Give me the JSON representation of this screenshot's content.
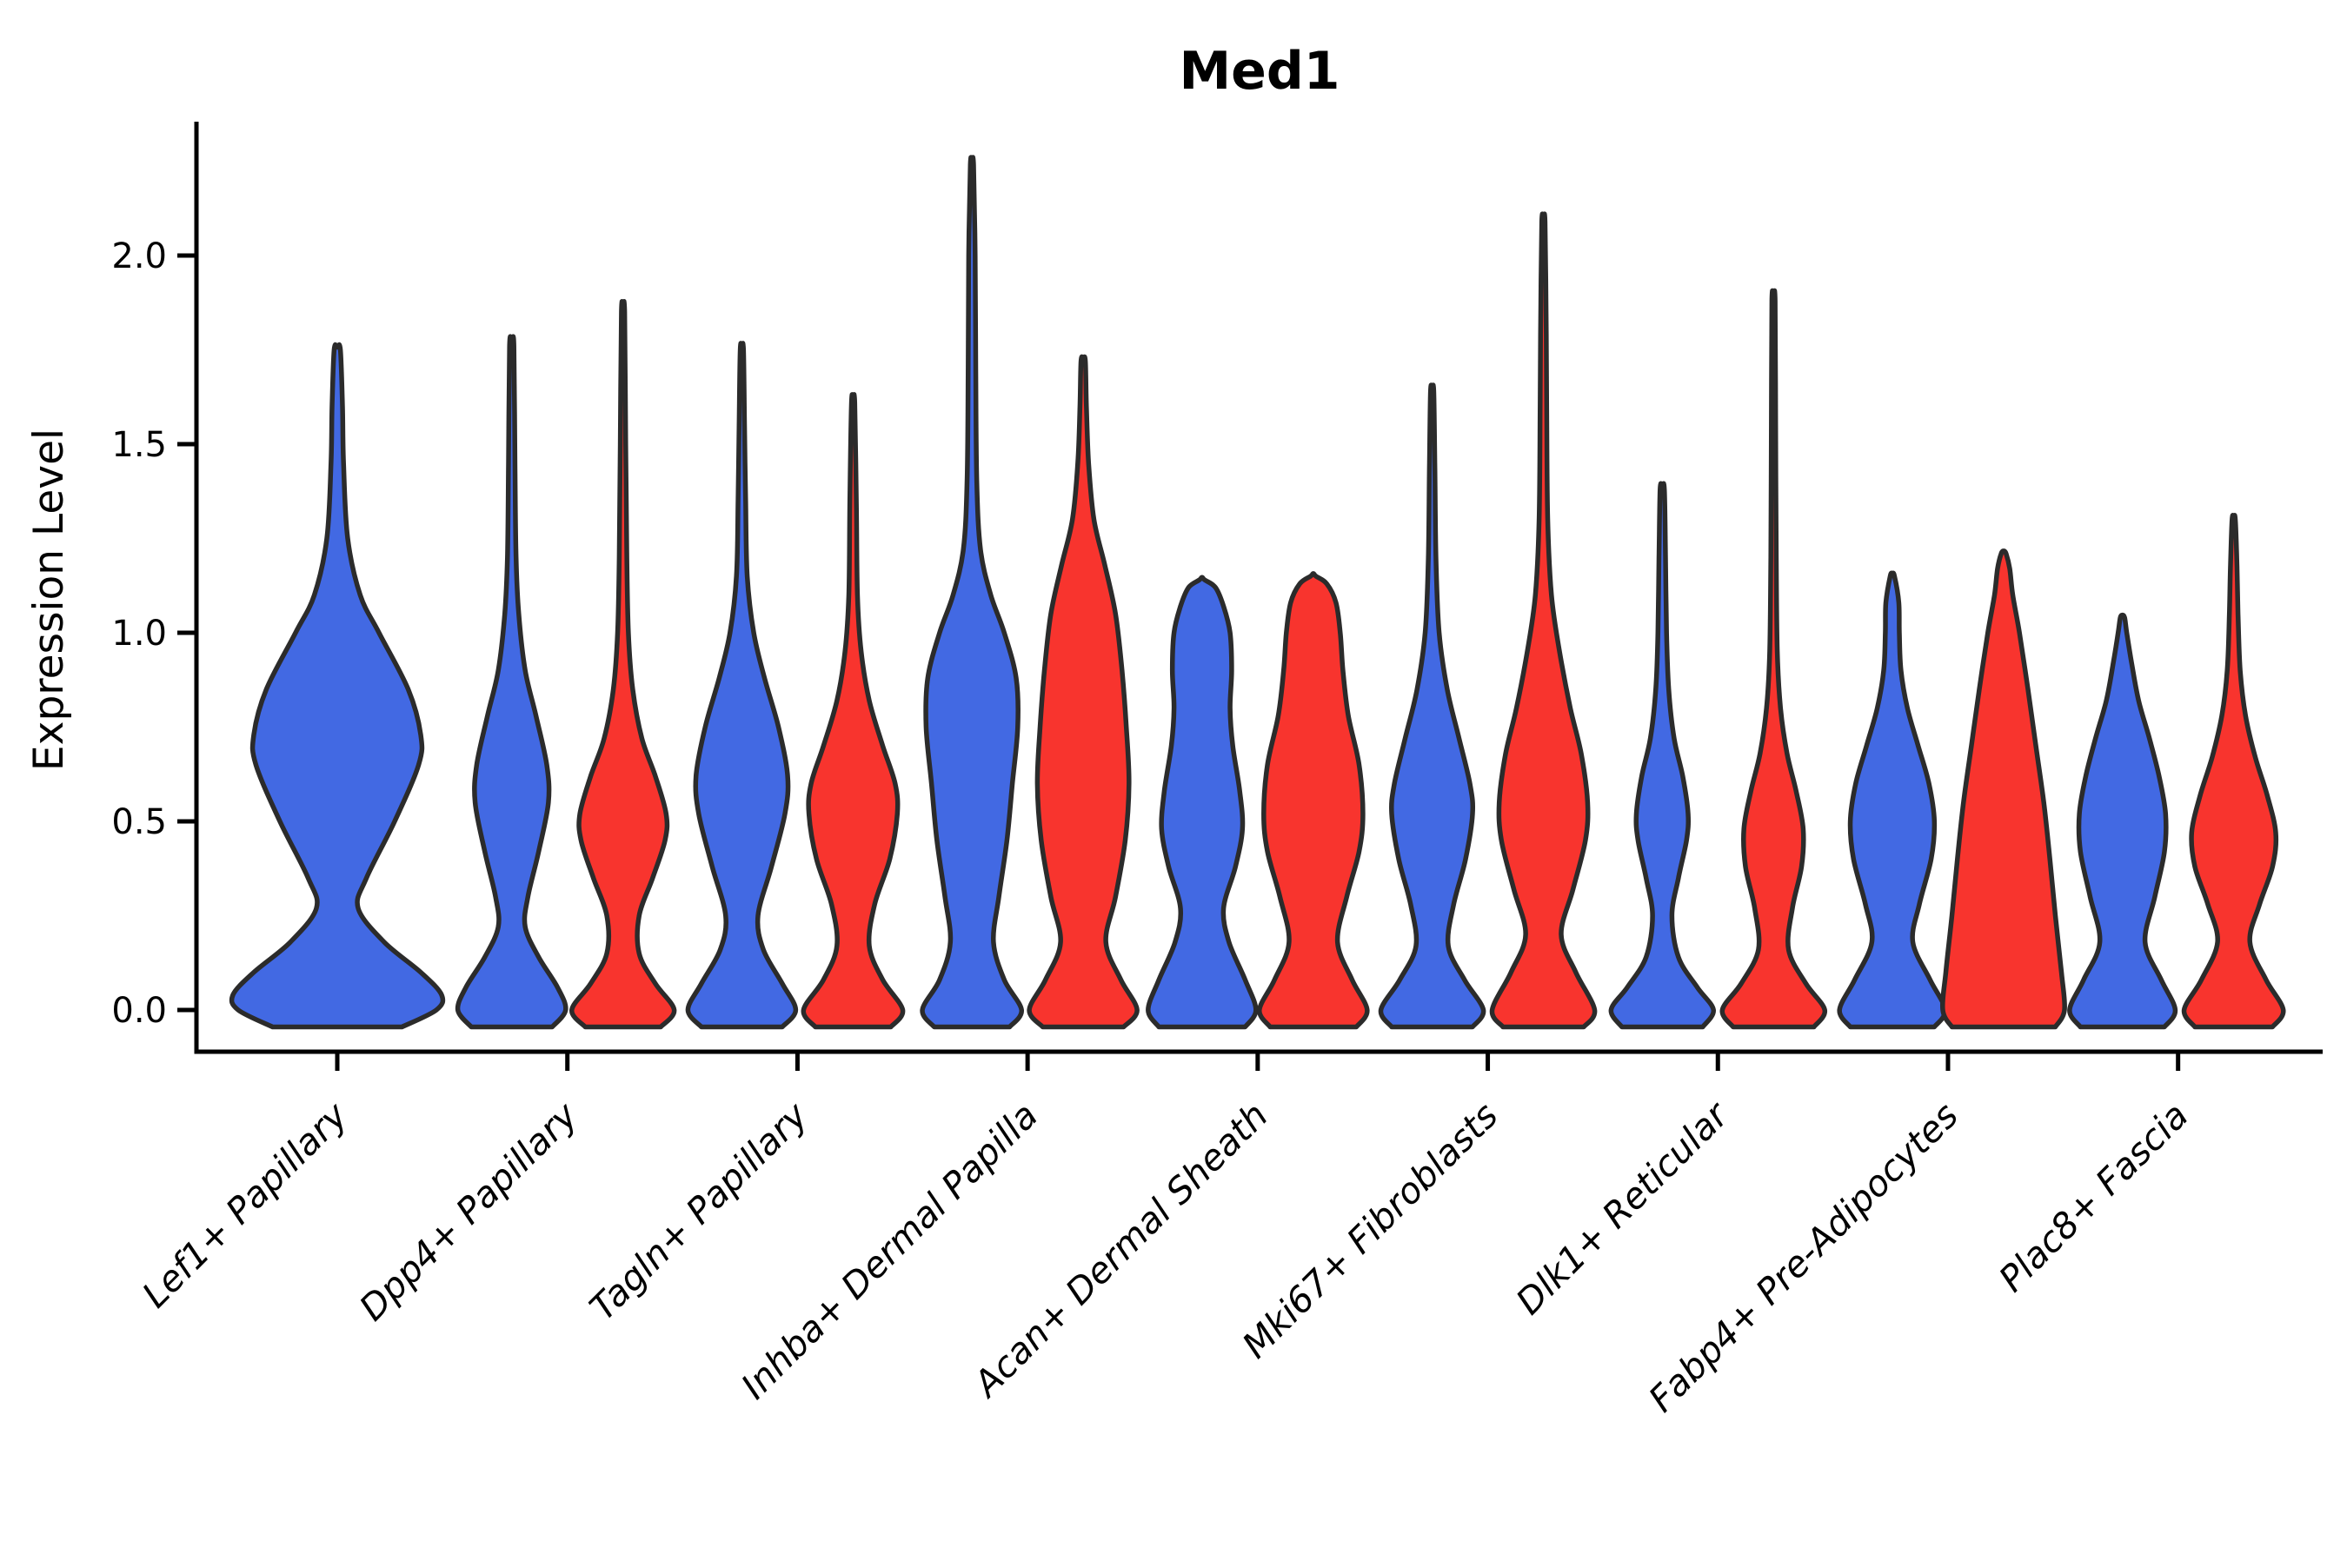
{
  "title": "Med1",
  "chart_data": {
    "type": "violin",
    "title": "Med1",
    "ylabel": "Expression Level",
    "xlabel": "",
    "grid": false,
    "legend": "none",
    "ylim": [
      -0.11,
      2.35
    ],
    "yticks": [
      0.0,
      0.5,
      1.0,
      1.5,
      2.0
    ],
    "ytick_labels": [
      "0.0",
      "0.5",
      "1.0",
      "1.5",
      "2.0"
    ],
    "categories": [
      "Lef1+ Papillary",
      "Dpp4+ Papillary",
      "Tagln+ Papillary",
      "Inhba+ Dermal Papilla",
      "Acan+ Dermal Sheath",
      "Mki67+ Fibroblasts",
      "Dlk1+ Reticular",
      "Fabp4+ Pre-Adipocytes",
      "Plac8+ Fascia"
    ],
    "split_colors": {
      "blue": "#4269E3",
      "red": "#F8342E"
    },
    "outline_color": "#2B2B2B",
    "axis_color": "#000000",
    "series": [
      {
        "name": "blue",
        "color": "#4269E3",
        "max_expression": [
          1.75,
          1.76,
          1.75,
          2.24,
          1.14,
          1.64,
          1.38,
          1.15,
          1.04
        ]
      },
      {
        "name": "red",
        "color": "#F8342E",
        "max_expression": [
          null,
          1.85,
          1.61,
          1.72,
          1.15,
          2.09,
          1.88,
          1.21,
          1.3
        ]
      }
    ],
    "violins": [
      {
        "category_index": 0,
        "split": "blue",
        "tip": 1.75,
        "center_offset": 0,
        "half_width": 120,
        "profile": [
          [
            -0.045,
            0.62
          ],
          [
            0.0,
            0.95
          ],
          [
            0.04,
            1.0
          ],
          [
            0.1,
            0.8
          ],
          [
            0.18,
            0.45
          ],
          [
            0.27,
            0.2
          ],
          [
            0.35,
            0.28
          ],
          [
            0.5,
            0.55
          ],
          [
            0.65,
            0.78
          ],
          [
            0.73,
            0.8
          ],
          [
            0.85,
            0.68
          ],
          [
            1.0,
            0.4
          ],
          [
            1.1,
            0.22
          ],
          [
            1.25,
            0.1
          ],
          [
            1.45,
            0.06
          ],
          [
            1.6,
            0.05
          ],
          [
            1.75,
            0.03
          ]
        ]
      },
      {
        "category_index": 1,
        "split": "blue",
        "tip": 1.76,
        "center_offset": -64,
        "half_width": 62,
        "profile": [
          [
            -0.045,
            0.75
          ],
          [
            0.0,
            1.0
          ],
          [
            0.06,
            0.85
          ],
          [
            0.14,
            0.5
          ],
          [
            0.22,
            0.25
          ],
          [
            0.3,
            0.3
          ],
          [
            0.42,
            0.5
          ],
          [
            0.55,
            0.68
          ],
          [
            0.65,
            0.65
          ],
          [
            0.78,
            0.45
          ],
          [
            0.9,
            0.25
          ],
          [
            1.05,
            0.13
          ],
          [
            1.2,
            0.08
          ],
          [
            1.45,
            0.06
          ],
          [
            1.76,
            0.04
          ]
        ]
      },
      {
        "category_index": 1,
        "split": "red",
        "tip": 1.85,
        "center_offset": 64,
        "half_width": 62,
        "profile": [
          [
            -0.045,
            0.7
          ],
          [
            0.0,
            0.95
          ],
          [
            0.07,
            0.6
          ],
          [
            0.15,
            0.3
          ],
          [
            0.25,
            0.3
          ],
          [
            0.35,
            0.55
          ],
          [
            0.45,
            0.78
          ],
          [
            0.52,
            0.8
          ],
          [
            0.62,
            0.6
          ],
          [
            0.72,
            0.35
          ],
          [
            0.85,
            0.18
          ],
          [
            1.0,
            0.1
          ],
          [
            1.2,
            0.07
          ],
          [
            1.5,
            0.05
          ],
          [
            1.85,
            0.03
          ]
        ]
      },
      {
        "category_index": 2,
        "split": "blue",
        "tip": 1.75,
        "center_offset": -64,
        "half_width": 62,
        "profile": [
          [
            -0.045,
            0.75
          ],
          [
            0.0,
            1.0
          ],
          [
            0.07,
            0.75
          ],
          [
            0.16,
            0.4
          ],
          [
            0.25,
            0.3
          ],
          [
            0.38,
            0.55
          ],
          [
            0.52,
            0.8
          ],
          [
            0.62,
            0.85
          ],
          [
            0.75,
            0.68
          ],
          [
            0.88,
            0.42
          ],
          [
            1.0,
            0.22
          ],
          [
            1.15,
            0.1
          ],
          [
            1.35,
            0.07
          ],
          [
            1.55,
            0.05
          ],
          [
            1.75,
            0.03
          ]
        ]
      },
      {
        "category_index": 2,
        "split": "red",
        "tip": 1.61,
        "center_offset": 64,
        "half_width": 62,
        "profile": [
          [
            -0.045,
            0.7
          ],
          [
            0.0,
            0.92
          ],
          [
            0.08,
            0.55
          ],
          [
            0.17,
            0.3
          ],
          [
            0.28,
            0.4
          ],
          [
            0.4,
            0.68
          ],
          [
            0.52,
            0.82
          ],
          [
            0.6,
            0.78
          ],
          [
            0.7,
            0.55
          ],
          [
            0.82,
            0.3
          ],
          [
            0.95,
            0.15
          ],
          [
            1.1,
            0.08
          ],
          [
            1.35,
            0.06
          ],
          [
            1.61,
            0.03
          ]
        ]
      },
      {
        "category_index": 3,
        "split": "blue",
        "tip": 2.24,
        "center_offset": -64,
        "half_width": 62,
        "profile": [
          [
            -0.045,
            0.7
          ],
          [
            0.0,
            0.92
          ],
          [
            0.08,
            0.6
          ],
          [
            0.18,
            0.4
          ],
          [
            0.3,
            0.5
          ],
          [
            0.45,
            0.65
          ],
          [
            0.6,
            0.75
          ],
          [
            0.75,
            0.85
          ],
          [
            0.88,
            0.82
          ],
          [
            1.0,
            0.6
          ],
          [
            1.1,
            0.35
          ],
          [
            1.22,
            0.16
          ],
          [
            1.4,
            0.09
          ],
          [
            1.7,
            0.07
          ],
          [
            2.0,
            0.06
          ],
          [
            2.24,
            0.03
          ]
        ]
      },
      {
        "category_index": 3,
        "split": "red",
        "tip": 1.72,
        "center_offset": 64,
        "half_width": 62,
        "profile": [
          [
            -0.045,
            0.75
          ],
          [
            0.0,
            1.0
          ],
          [
            0.08,
            0.7
          ],
          [
            0.18,
            0.42
          ],
          [
            0.3,
            0.6
          ],
          [
            0.45,
            0.78
          ],
          [
            0.6,
            0.85
          ],
          [
            0.75,
            0.8
          ],
          [
            0.9,
            0.72
          ],
          [
            1.05,
            0.6
          ],
          [
            1.18,
            0.4
          ],
          [
            1.3,
            0.2
          ],
          [
            1.45,
            0.1
          ],
          [
            1.6,
            0.06
          ],
          [
            1.72,
            0.04
          ]
        ]
      },
      {
        "category_index": 4,
        "split": "blue",
        "tip": 1.14,
        "center_offset": -64,
        "half_width": 62,
        "profile": [
          [
            -0.045,
            0.8
          ],
          [
            0.0,
            1.0
          ],
          [
            0.08,
            0.8
          ],
          [
            0.18,
            0.5
          ],
          [
            0.27,
            0.4
          ],
          [
            0.38,
            0.62
          ],
          [
            0.48,
            0.75
          ],
          [
            0.58,
            0.7
          ],
          [
            0.7,
            0.57
          ],
          [
            0.8,
            0.52
          ],
          [
            0.9,
            0.55
          ],
          [
            1.0,
            0.52
          ],
          [
            1.07,
            0.4
          ],
          [
            1.12,
            0.25
          ],
          [
            1.14,
            0.05
          ]
        ]
      },
      {
        "category_index": 4,
        "split": "red",
        "tip": 1.15,
        "center_offset": 64,
        "half_width": 62,
        "profile": [
          [
            -0.045,
            0.8
          ],
          [
            0.0,
            1.0
          ],
          [
            0.08,
            0.72
          ],
          [
            0.18,
            0.45
          ],
          [
            0.3,
            0.62
          ],
          [
            0.42,
            0.85
          ],
          [
            0.52,
            0.92
          ],
          [
            0.65,
            0.85
          ],
          [
            0.78,
            0.65
          ],
          [
            0.9,
            0.55
          ],
          [
            1.0,
            0.5
          ],
          [
            1.08,
            0.42
          ],
          [
            1.13,
            0.25
          ],
          [
            1.15,
            0.05
          ]
        ]
      },
      {
        "category_index": 5,
        "split": "blue",
        "tip": 1.64,
        "center_offset": -64,
        "half_width": 62,
        "profile": [
          [
            -0.045,
            0.75
          ],
          [
            0.0,
            0.95
          ],
          [
            0.08,
            0.6
          ],
          [
            0.17,
            0.3
          ],
          [
            0.28,
            0.4
          ],
          [
            0.4,
            0.62
          ],
          [
            0.52,
            0.75
          ],
          [
            0.6,
            0.7
          ],
          [
            0.72,
            0.5
          ],
          [
            0.85,
            0.28
          ],
          [
            1.0,
            0.13
          ],
          [
            1.2,
            0.07
          ],
          [
            1.45,
            0.05
          ],
          [
            1.64,
            0.03
          ]
        ]
      },
      {
        "category_index": 5,
        "split": "red",
        "tip": 2.09,
        "center_offset": 64,
        "half_width": 62,
        "profile": [
          [
            -0.045,
            0.75
          ],
          [
            0.0,
            0.95
          ],
          [
            0.1,
            0.6
          ],
          [
            0.2,
            0.33
          ],
          [
            0.32,
            0.55
          ],
          [
            0.45,
            0.78
          ],
          [
            0.55,
            0.82
          ],
          [
            0.68,
            0.7
          ],
          [
            0.8,
            0.5
          ],
          [
            0.95,
            0.3
          ],
          [
            1.1,
            0.15
          ],
          [
            1.3,
            0.08
          ],
          [
            1.6,
            0.06
          ],
          [
            1.85,
            0.05
          ],
          [
            2.09,
            0.03
          ]
        ]
      },
      {
        "category_index": 6,
        "split": "blue",
        "tip": 1.38,
        "center_offset": -64,
        "half_width": 62,
        "profile": [
          [
            -0.045,
            0.75
          ],
          [
            0.0,
            0.95
          ],
          [
            0.06,
            0.65
          ],
          [
            0.14,
            0.3
          ],
          [
            0.25,
            0.18
          ],
          [
            0.35,
            0.3
          ],
          [
            0.45,
            0.45
          ],
          [
            0.52,
            0.48
          ],
          [
            0.62,
            0.38
          ],
          [
            0.72,
            0.22
          ],
          [
            0.85,
            0.12
          ],
          [
            1.0,
            0.08
          ],
          [
            1.2,
            0.06
          ],
          [
            1.38,
            0.04
          ]
        ]
      },
      {
        "category_index": 6,
        "split": "red",
        "tip": 1.88,
        "center_offset": 64,
        "half_width": 62,
        "profile": [
          [
            -0.045,
            0.75
          ],
          [
            0.0,
            0.95
          ],
          [
            0.07,
            0.6
          ],
          [
            0.16,
            0.28
          ],
          [
            0.27,
            0.35
          ],
          [
            0.38,
            0.52
          ],
          [
            0.48,
            0.55
          ],
          [
            0.58,
            0.42
          ],
          [
            0.68,
            0.25
          ],
          [
            0.8,
            0.13
          ],
          [
            0.95,
            0.07
          ],
          [
            1.2,
            0.05
          ],
          [
            1.55,
            0.04
          ],
          [
            1.88,
            0.03
          ]
        ]
      },
      {
        "category_index": 7,
        "split": "blue",
        "tip": 1.15,
        "center_offset": -64,
        "half_width": 62,
        "profile": [
          [
            -0.045,
            0.78
          ],
          [
            0.0,
            0.98
          ],
          [
            0.08,
            0.7
          ],
          [
            0.18,
            0.38
          ],
          [
            0.28,
            0.5
          ],
          [
            0.4,
            0.72
          ],
          [
            0.5,
            0.78
          ],
          [
            0.6,
            0.68
          ],
          [
            0.7,
            0.48
          ],
          [
            0.8,
            0.28
          ],
          [
            0.9,
            0.16
          ],
          [
            1.0,
            0.13
          ],
          [
            1.08,
            0.12
          ],
          [
            1.15,
            0.04
          ]
        ]
      },
      {
        "category_index": 7,
        "split": "red",
        "tip": 1.21,
        "center_offset": 64,
        "half_width": 70,
        "profile": [
          [
            -0.045,
            0.85
          ],
          [
            0.0,
            1.0
          ],
          [
            0.1,
            0.95
          ],
          [
            0.25,
            0.85
          ],
          [
            0.4,
            0.76
          ],
          [
            0.55,
            0.66
          ],
          [
            0.7,
            0.53
          ],
          [
            0.85,
            0.4
          ],
          [
            1.0,
            0.26
          ],
          [
            1.1,
            0.15
          ],
          [
            1.17,
            0.1
          ],
          [
            1.21,
            0.04
          ]
        ]
      },
      {
        "category_index": 8,
        "split": "blue",
        "tip": 1.04,
        "center_offset": -64,
        "half_width": 62,
        "profile": [
          [
            -0.045,
            0.78
          ],
          [
            0.0,
            0.98
          ],
          [
            0.08,
            0.72
          ],
          [
            0.18,
            0.42
          ],
          [
            0.3,
            0.6
          ],
          [
            0.42,
            0.78
          ],
          [
            0.52,
            0.8
          ],
          [
            0.62,
            0.68
          ],
          [
            0.72,
            0.5
          ],
          [
            0.82,
            0.3
          ],
          [
            0.92,
            0.17
          ],
          [
            1.0,
            0.08
          ],
          [
            1.04,
            0.04
          ]
        ]
      },
      {
        "category_index": 8,
        "split": "red",
        "tip": 1.3,
        "center_offset": 64,
        "half_width": 62,
        "profile": [
          [
            -0.045,
            0.72
          ],
          [
            0.0,
            0.92
          ],
          [
            0.08,
            0.6
          ],
          [
            0.18,
            0.3
          ],
          [
            0.28,
            0.48
          ],
          [
            0.38,
            0.72
          ],
          [
            0.47,
            0.78
          ],
          [
            0.57,
            0.62
          ],
          [
            0.67,
            0.4
          ],
          [
            0.78,
            0.22
          ],
          [
            0.9,
            0.12
          ],
          [
            1.05,
            0.08
          ],
          [
            1.18,
            0.06
          ],
          [
            1.3,
            0.03
          ]
        ]
      }
    ]
  }
}
